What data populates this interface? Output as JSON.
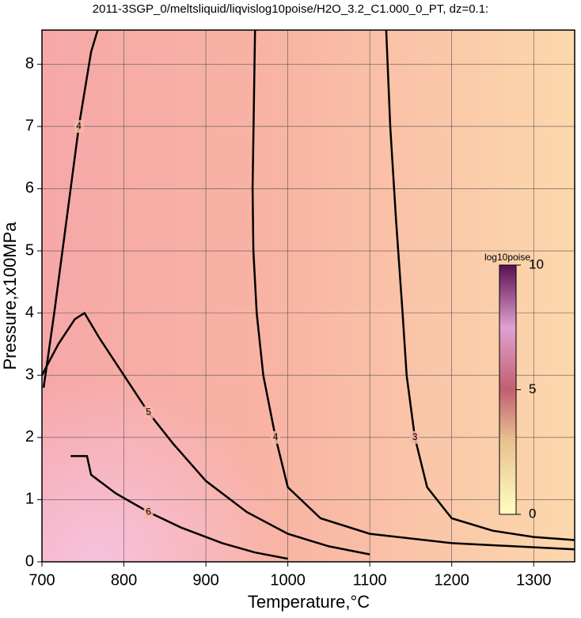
{
  "chart_data": {
    "type": "contour",
    "title": "2011-3SGP_0/meltsliquid/liqvislog10poise/H2O_3.2_C1.000_0_PT, dz=0.1:",
    "x_label": "Temperature,°C",
    "y_label": "Pressure,x100MPa",
    "xlim": [
      700,
      1350
    ],
    "ylim": [
      0,
      8.55
    ],
    "xticks": [
      700,
      800,
      900,
      1000,
      1100,
      1200,
      1300
    ],
    "yticks": [
      0,
      1,
      2,
      3,
      4,
      5,
      6,
      7,
      8
    ],
    "grid": true,
    "contours": [
      {
        "level": 3,
        "x": [
          1120,
          1125,
          1132,
          1140,
          1145,
          1155,
          1170,
          1200,
          1250,
          1300,
          1350
        ],
        "y": [
          8.55,
          7,
          5.5,
          4,
          3,
          2,
          1.2,
          0.7,
          0.5,
          0.4,
          0.35
        ]
      },
      {
        "level": 4,
        "x": [
          960,
          957,
          958,
          962,
          970,
          985,
          1000,
          1040,
          1100,
          1200,
          1350
        ],
        "y": [
          8.55,
          6,
          5,
          4,
          3,
          2,
          1.2,
          0.7,
          0.45,
          0.3,
          0.2
        ]
      },
      {
        "level": 4,
        "x": [
          702,
          715,
          730,
          745,
          760,
          768
        ],
        "y": [
          2.8,
          4,
          5.5,
          7,
          8.2,
          8.55
        ]
      },
      {
        "level": 5,
        "x": [
          700,
          720,
          740,
          752,
          770,
          800,
          830,
          860,
          900,
          950,
          1000,
          1050,
          1100
        ],
        "y": [
          3,
          3.5,
          3.9,
          4,
          3.6,
          3,
          2.4,
          1.9,
          1.3,
          0.8,
          0.45,
          0.25,
          0.12
        ]
      },
      {
        "level": 6,
        "x": [
          735,
          755,
          760,
          790,
          830,
          870,
          920,
          960,
          1000
        ],
        "y": [
          1.7,
          1.7,
          1.4,
          1.1,
          0.8,
          0.55,
          0.3,
          0.15,
          0.05
        ]
      }
    ],
    "colorbar": {
      "label": "log10poise",
      "lim": [
        0,
        10
      ],
      "ticks": [
        0,
        5,
        10
      ]
    }
  }
}
